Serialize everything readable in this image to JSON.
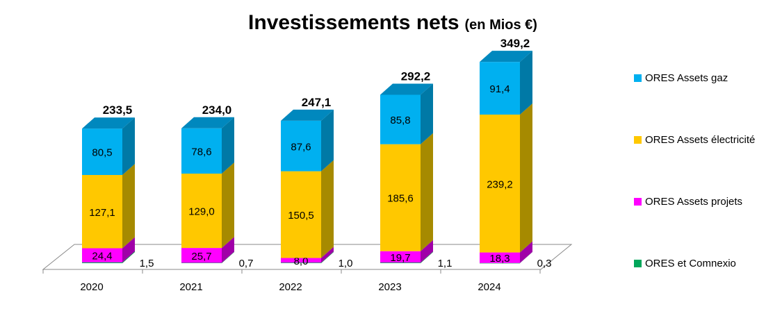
{
  "chart_data": {
    "type": "bar",
    "stacked": true,
    "three_d": true,
    "title": "Investissements nets",
    "title_unit": "(en Mios €)",
    "categories": [
      "2020",
      "2021",
      "2022",
      "2023",
      "2024"
    ],
    "totals": [
      "233,5",
      "234,0",
      "247,1",
      "292,2",
      "349,2"
    ],
    "series": [
      {
        "name": "ORES et Comnexio",
        "values": [
          1.5,
          0.7,
          1.0,
          1.1,
          0.3
        ],
        "labels": [
          "1,5",
          "0,7",
          "1,0",
          "1,1",
          "0,3"
        ],
        "color": "#00A65A",
        "side_color": "#007A42",
        "top_color": "#33C07E"
      },
      {
        "name": "ORES Assets projets",
        "values": [
          24.4,
          25.7,
          8.0,
          19.7,
          18.3
        ],
        "labels": [
          "24,4",
          "25,7",
          "8,0",
          "19,7",
          "18,3"
        ],
        "color": "#FF00FF",
        "side_color": "#A000A8",
        "top_color": "#FF66FF"
      },
      {
        "name": "ORES Assets  électricité",
        "values": [
          127.1,
          129.0,
          150.5,
          185.6,
          239.2
        ],
        "labels": [
          "127,1",
          "129,0",
          "150,5",
          "185,6",
          "239,2"
        ],
        "color": "#FFC800",
        "side_color": "#A68A00",
        "top_color": "#FFD84D"
      },
      {
        "name": "ORES Assets gaz",
        "values": [
          80.5,
          78.6,
          87.6,
          85.8,
          91.4
        ],
        "labels": [
          "80,5",
          "78,6",
          "87,6",
          "85,8",
          "91,4"
        ],
        "color": "#00B0F0",
        "side_color": "#0079A6",
        "top_color": "#0088BE"
      }
    ],
    "legend_position": "right",
    "legend_order": [
      "ORES Assets gaz",
      "ORES Assets  électricité",
      "ORES Assets projets",
      "ORES et Comnexio"
    ],
    "gridlines": false
  }
}
